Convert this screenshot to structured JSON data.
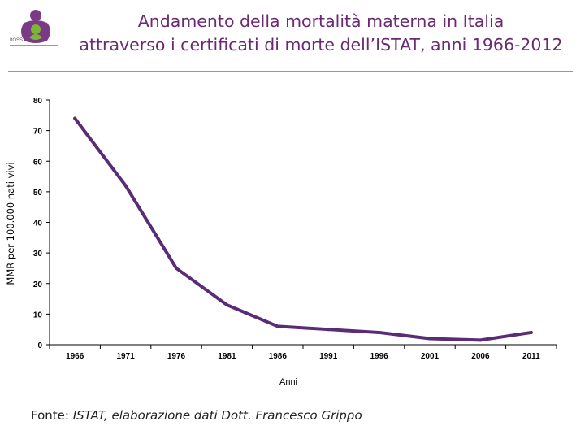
{
  "title": {
    "line1": "Andamento della mortalità materna in Italia",
    "line2": "attraverso i certificati di morte dell’ISTAT, anni 1966-2012"
  },
  "logo": {
    "text": "ItOSS",
    "icon": "mother-child-logo-icon"
  },
  "colors": {
    "title": "#6b2a73",
    "line": "#5a2c78",
    "rule": "#a39a6b",
    "logo_purple": "#7a3a86",
    "logo_green": "#7db534"
  },
  "chart_data": {
    "type": "line",
    "title": "",
    "xlabel": "Anni",
    "ylabel": "MMR per 100.000 nati vivi",
    "ylim": [
      0,
      80
    ],
    "yticks": [
      0,
      10,
      20,
      30,
      40,
      50,
      60,
      70,
      80
    ],
    "xticks": [
      "1966",
      "1971",
      "1976",
      "1981",
      "1986",
      "1991",
      "1996",
      "2001",
      "2006",
      "2011"
    ],
    "xlim": [
      1963.5,
      2013.5
    ],
    "grid": false,
    "series": [
      {
        "name": "MMR",
        "x": [
          1966,
          1971,
          1976,
          1981,
          1986,
          1991,
          1996,
          2001,
          2006,
          2011
        ],
        "values": [
          74,
          52,
          25,
          13,
          6,
          5,
          4,
          2,
          1.5,
          4
        ]
      }
    ]
  },
  "source": {
    "label": "Fonte: ",
    "italic_text": "ISTAT,  elaborazione dati Dott. Francesco Grippo"
  }
}
